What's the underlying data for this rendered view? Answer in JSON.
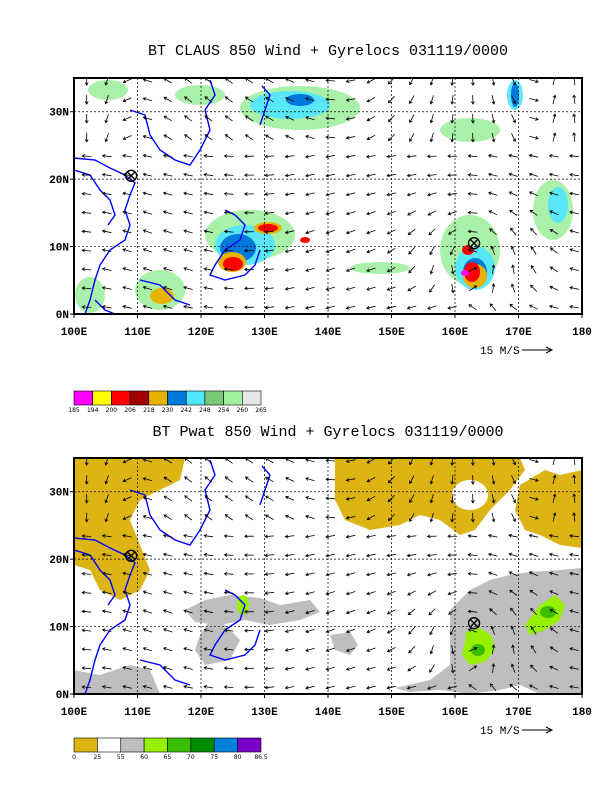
{
  "chart_data": [
    {
      "type": "heatmap",
      "title": "BT CLAUS 850 Wind + Gyrelocs 031119/0000",
      "x_ticks": [
        "100E",
        "110E",
        "120E",
        "130E",
        "140E",
        "150E",
        "160E",
        "170E",
        "180"
      ],
      "y_ticks": [
        "0N",
        "10N",
        "20N",
        "30N"
      ],
      "xlim": [
        100,
        180
      ],
      "ylim": [
        0,
        35
      ],
      "grid": true,
      "vector_scale_label": "15 M/S",
      "colorbar": {
        "labels": [
          "185",
          "194",
          "200",
          "206",
          "218",
          "230",
          "242",
          "248",
          "254",
          "260",
          "265"
        ],
        "colors": [
          "#ff00ff",
          "#ffff00",
          "#ff0000",
          "#a00000",
          "#e6b400",
          "#0078dc",
          "#50e6ff",
          "#78c878",
          "#a0f0a0",
          "#e6e6e6"
        ]
      },
      "gyre_markers": [
        {
          "lon": 109,
          "lat": 20.5
        },
        {
          "lon": 163,
          "lat": 10.5
        }
      ]
    },
    {
      "type": "heatmap",
      "title": "BT Pwat 850 Wind + Gyrelocs 031119/0000",
      "x_ticks": [
        "100E",
        "110E",
        "120E",
        "130E",
        "140E",
        "150E",
        "160E",
        "170E",
        "180"
      ],
      "y_ticks": [
        "0N",
        "10N",
        "20N",
        "30N"
      ],
      "xlim": [
        100,
        180
      ],
      "ylim": [
        0,
        35
      ],
      "grid": true,
      "vector_scale_label": "15 M/S",
      "colorbar": {
        "labels": [
          "0",
          "25",
          "55",
          "60",
          "65",
          "70",
          "75",
          "80",
          "86.5"
        ],
        "colors": [
          "#dcb414",
          "#ffffff",
          "#bebebe",
          "#96f000",
          "#3cbe00",
          "#008c00",
          "#0082dc",
          "#7800c8"
        ]
      },
      "gyre_markers": [
        {
          "lon": 109,
          "lat": 20.5
        },
        {
          "lon": 163,
          "lat": 10.5
        }
      ]
    }
  ]
}
